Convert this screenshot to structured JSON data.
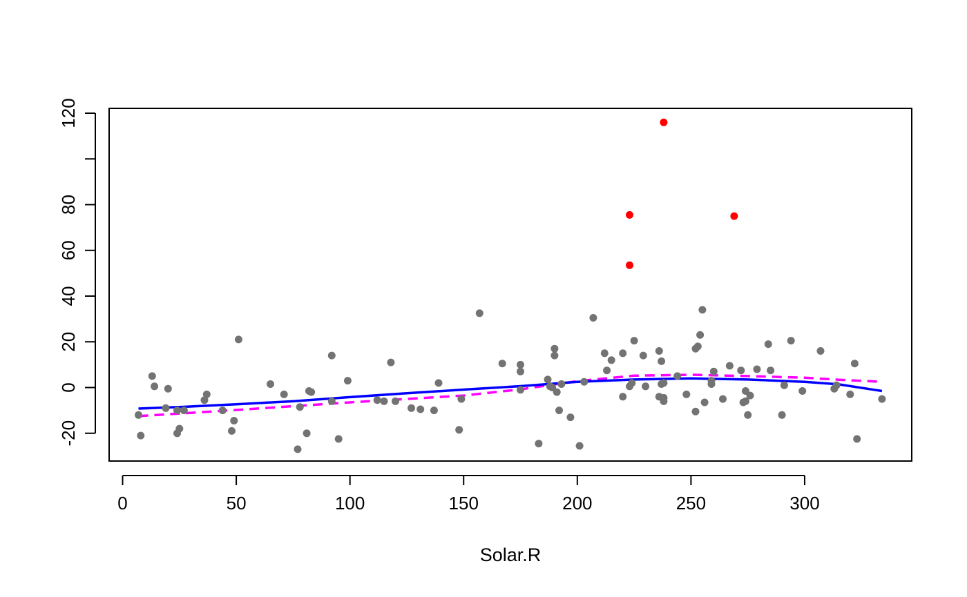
{
  "chart_data": {
    "type": "scatter",
    "title": "",
    "xlabel": "Solar.R",
    "ylabel": "",
    "xlim": [
      0,
      345
    ],
    "ylim": [
      -32,
      122
    ],
    "x_ticks": [
      0,
      50,
      100,
      150,
      200,
      250,
      300
    ],
    "x_tick_labels": [
      "0",
      "50",
      "100",
      "150",
      "200",
      "250",
      "300"
    ],
    "y_ticks": [
      -20,
      0,
      20,
      40,
      60,
      80,
      100,
      120
    ],
    "y_tick_labels": [
      "-20",
      "0",
      "20",
      "40",
      "60",
      "80",
      "",
      "120"
    ],
    "grid": false,
    "colors": {
      "points": "#737373",
      "outliers": "#ff0000",
      "smooth": "#0000ff",
      "reference": "#ff00ff"
    },
    "points": [
      [
        7,
        -12
      ],
      [
        8,
        -21
      ],
      [
        13,
        5
      ],
      [
        14,
        0.5
      ],
      [
        19,
        -9
      ],
      [
        20,
        -0.5
      ],
      [
        24,
        -20
      ],
      [
        24,
        -10
      ],
      [
        25,
        -18
      ],
      [
        27,
        -10
      ],
      [
        36,
        -5.5
      ],
      [
        37,
        -3
      ],
      [
        44,
        -10
      ],
      [
        48,
        -19
      ],
      [
        49,
        -14.5
      ],
      [
        51,
        21
      ],
      [
        65,
        1.5
      ],
      [
        71,
        -3
      ],
      [
        77,
        -27
      ],
      [
        78,
        -8.5
      ],
      [
        81,
        -20
      ],
      [
        82,
        -1.5
      ],
      [
        83,
        -2
      ],
      [
        92,
        14
      ],
      [
        92,
        -6
      ],
      [
        95,
        -22.5
      ],
      [
        99,
        3
      ],
      [
        112,
        -5.5
      ],
      [
        115,
        -6
      ],
      [
        118,
        11
      ],
      [
        120,
        -6
      ],
      [
        127,
        -9
      ],
      [
        131,
        -9.5
      ],
      [
        137,
        -10
      ],
      [
        139,
        2
      ],
      [
        148,
        -18.5
      ],
      [
        149,
        -5
      ],
      [
        157,
        32.5
      ],
      [
        167,
        10.5
      ],
      [
        175,
        10
      ],
      [
        175,
        7
      ],
      [
        175,
        -1
      ],
      [
        183,
        -24.5
      ],
      [
        187,
        3.5
      ],
      [
        188,
        0.5
      ],
      [
        189,
        0
      ],
      [
        190,
        17
      ],
      [
        190,
        14
      ],
      [
        191,
        -2
      ],
      [
        192,
        -10
      ],
      [
        193,
        1.5
      ],
      [
        197,
        -13
      ],
      [
        201,
        -25.5
      ],
      [
        203,
        2.5
      ],
      [
        207,
        30.5
      ],
      [
        212,
        15
      ],
      [
        213,
        7.5
      ],
      [
        215,
        12
      ],
      [
        220,
        15
      ],
      [
        220,
        -4
      ],
      [
        223,
        0.5
      ],
      [
        224,
        2
      ],
      [
        225,
        20.5
      ],
      [
        229,
        14
      ],
      [
        230,
        0.5
      ],
      [
        236,
        16
      ],
      [
        236,
        -4
      ],
      [
        237,
        11.5
      ],
      [
        237,
        1.5
      ],
      [
        238,
        2
      ],
      [
        238,
        -4.5
      ],
      [
        238,
        -6
      ],
      [
        244,
        5
      ],
      [
        248,
        -3
      ],
      [
        252,
        17
      ],
      [
        252,
        -10.5
      ],
      [
        253,
        18
      ],
      [
        254,
        23
      ],
      [
        255,
        34
      ],
      [
        256,
        -6.5
      ],
      [
        259,
        1.5
      ],
      [
        259,
        3
      ],
      [
        260,
        7
      ],
      [
        264,
        -5
      ],
      [
        267,
        9.5
      ],
      [
        272,
        7.5
      ],
      [
        273,
        -6.5
      ],
      [
        274,
        -1.5
      ],
      [
        274,
        -6
      ],
      [
        275,
        -12
      ],
      [
        276,
        -3.5
      ],
      [
        279,
        8
      ],
      [
        284,
        19
      ],
      [
        285,
        7.5
      ],
      [
        290,
        -12
      ],
      [
        291,
        1
      ],
      [
        294,
        20.5
      ],
      [
        299,
        -1.5
      ],
      [
        307,
        16
      ],
      [
        313,
        -0.5
      ],
      [
        314,
        1
      ],
      [
        320,
        -3
      ],
      [
        322,
        10.5
      ],
      [
        323,
        -22.5
      ],
      [
        334,
        -5
      ]
    ],
    "outliers": [
      [
        238,
        116
      ],
      [
        223,
        75.5
      ],
      [
        269,
        75
      ],
      [
        223,
        53.5
      ]
    ],
    "smooth_line": [
      [
        7,
        -9.2
      ],
      [
        25,
        -8.5
      ],
      [
        50,
        -7.3
      ],
      [
        75,
        -6
      ],
      [
        100,
        -4.2
      ],
      [
        125,
        -2.5
      ],
      [
        150,
        -0.9
      ],
      [
        175,
        0.6
      ],
      [
        200,
        2.5
      ],
      [
        225,
        3.5
      ],
      [
        250,
        4
      ],
      [
        275,
        3.5
      ],
      [
        300,
        2.5
      ],
      [
        315,
        1.4
      ],
      [
        334,
        -1.5
      ]
    ],
    "reference_line": [
      [
        7,
        -12.5
      ],
      [
        50,
        -9.8
      ],
      [
        100,
        -6.5
      ],
      [
        150,
        -3.5
      ],
      [
        175,
        -0.8
      ],
      [
        200,
        2.8
      ],
      [
        225,
        5.2
      ],
      [
        250,
        5.6
      ],
      [
        275,
        5
      ],
      [
        300,
        4.3
      ],
      [
        315,
        3.4
      ],
      [
        334,
        2.5
      ]
    ]
  }
}
